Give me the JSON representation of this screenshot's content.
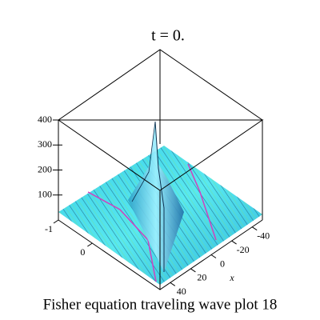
{
  "chart_data": {
    "type": "surface",
    "title": "t = 0.",
    "caption": "Fisher equation  traveling wave plot 18",
    "xlabel": "x",
    "xlim": [
      -50,
      50
    ],
    "xticks": [
      -40,
      -20,
      0,
      20,
      40
    ],
    "ylim": [
      -1,
      2
    ],
    "yticks": [
      -1,
      0
    ],
    "zlim": [
      0,
      400
    ],
    "zticks": [
      100,
      200,
      300,
      400
    ]
  }
}
